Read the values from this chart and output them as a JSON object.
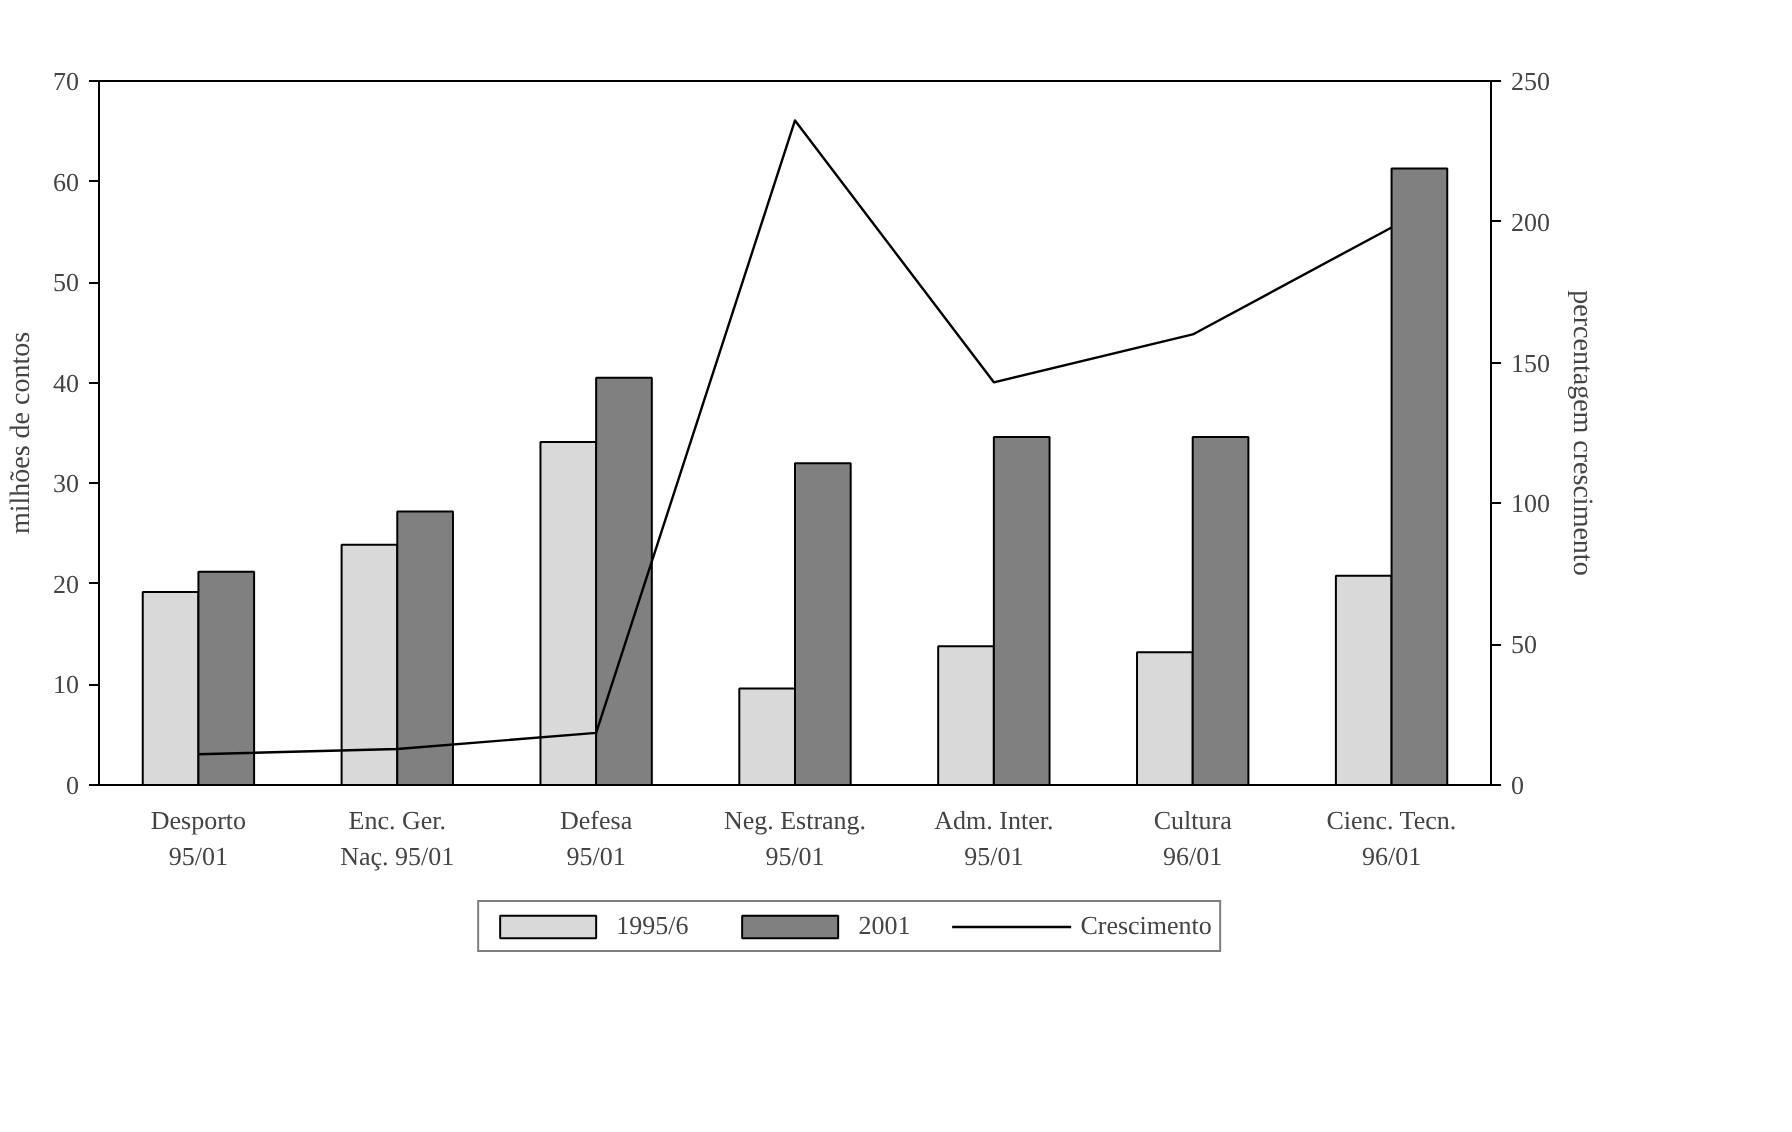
{
  "chart_data": {
    "type": "bar",
    "categories": [
      "Desporto\n95/01",
      "Enc. Ger.\nNaç. 95/01",
      "Defesa\n95/01",
      "Neg. Estrang.\n95/01",
      "Adm. Inter.\n95/01",
      "Cultura\n96/01",
      "Cienc. Tecn.\n96/01"
    ],
    "ylabel": "milhões de contos",
    "y2label": "percentagem crescimento",
    "ylim": [
      0,
      70
    ],
    "yticks": [
      0,
      10,
      20,
      30,
      40,
      50,
      60,
      70
    ],
    "y2lim": [
      0,
      250
    ],
    "y2ticks": [
      0,
      50,
      100,
      150,
      200,
      250
    ],
    "series": [
      {
        "name": "1995/6",
        "color": "#d9d9d9",
        "values": [
          19.2,
          23.9,
          34.1,
          9.6,
          13.8,
          13.2,
          20.8
        ]
      },
      {
        "name": "2001",
        "color": "#808080",
        "values": [
          21.2,
          27.2,
          40.5,
          32.0,
          34.6,
          34.6,
          61.3
        ]
      },
      {
        "name": "Crescimento",
        "type": "line",
        "axis": "y2",
        "color": "#000000",
        "marker": "none",
        "values": [
          10.9,
          12.8,
          18.5,
          236,
          143,
          160,
          198
        ]
      }
    ],
    "legend": "bottom",
    "grid": false
  }
}
